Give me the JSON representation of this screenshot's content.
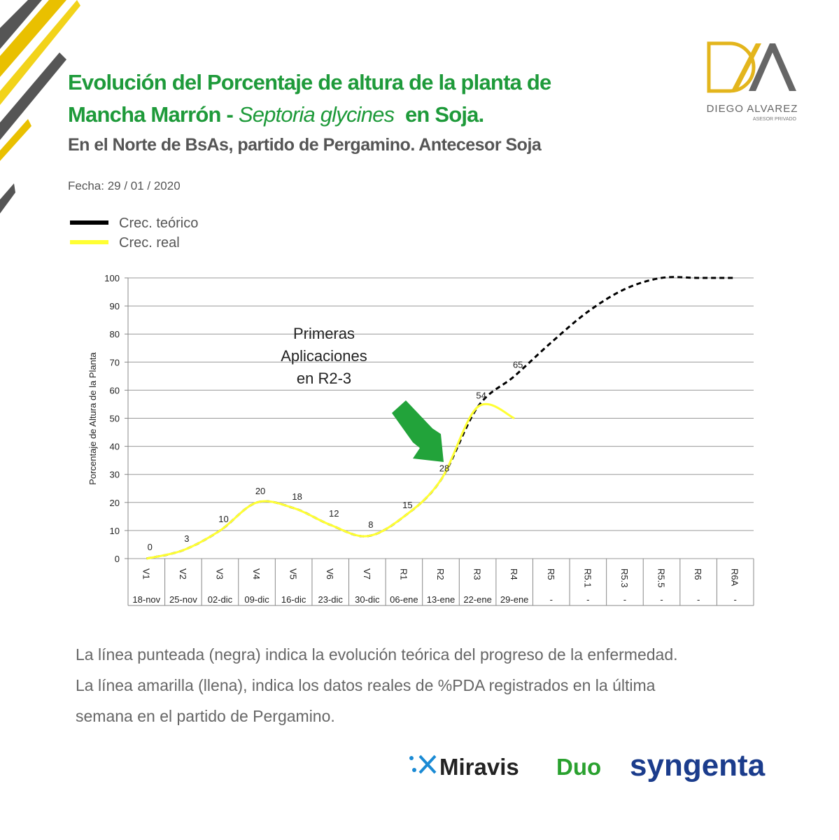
{
  "header": {
    "title": [
      "Evolución del Porcentaje de altura de la planta de",
      "Mancha Marrón - ",
      "Septoria glycines",
      "en Soja."
    ],
    "subtitle": "En el Norte de BsAs, partido de Pergamino. Antecesor Soja",
    "date": "Fecha: 29 / 01 / 2020"
  },
  "brand": {
    "name": "DIEGO ALVAREZ",
    "tagline": "ASESOR PRIVADO"
  },
  "chart_data": {
    "type": "line",
    "y_label": "Porcentaje de Altura de la Planta",
    "annotation": [
      "Primeras",
      "Aplicaciones",
      "en R2-3"
    ],
    "categories": [
      "V1",
      "V2",
      "V3",
      "V4",
      "V5",
      "V6",
      "V7",
      "R1",
      "R2",
      "R3",
      "R4",
      "R5",
      "R5.1",
      "R5.3",
      "R5.5",
      "R6",
      "R6A"
    ],
    "category_dates": [
      "18-nov",
      "25-nov",
      "02-dic",
      "09-dic",
      "16-dic",
      "23-dic",
      "30-dic",
      "06-ene",
      "13-ene",
      "22-ene",
      "29-ene",
      "-",
      "-",
      "-",
      "-",
      "-",
      "-"
    ],
    "series": [
      {
        "name": "Crec. teórico",
        "color": "#000000",
        "dashed": true,
        "values": [
          0,
          3,
          10,
          20,
          18,
          12,
          8,
          15,
          28,
          54,
          65,
          77,
          88,
          96,
          100,
          100,
          100
        ],
        "value_labels": [
          null,
          null,
          null,
          null,
          null,
          null,
          null,
          null,
          null,
          null,
          "65",
          null,
          null,
          null,
          null,
          null,
          null
        ]
      },
      {
        "name": "Crec. real",
        "color": "#ffff33",
        "dashed": false,
        "values": [
          0,
          3,
          10,
          20,
          18,
          12,
          8,
          15,
          28,
          54,
          50,
          null,
          null,
          null,
          null,
          null,
          null
        ],
        "value_labels": [
          "0",
          "3",
          "10",
          "20",
          "18",
          "12",
          "8",
          "15",
          "28",
          "54",
          null,
          null,
          null,
          null,
          null,
          null,
          null
        ]
      }
    ],
    "ylim": [
      0,
      100
    ],
    "yticks": [
      0,
      10,
      20,
      30,
      40,
      50,
      60,
      70,
      80,
      90,
      100
    ],
    "grid": true
  },
  "footer": {
    "note": [
      "La línea punteada (negra) indica la evolución teórica del progreso de la enfermedad.",
      "La línea amarilla (llena), indica los datos reales de %PDA registrados en la última",
      "semana en el partido de Pergamino."
    ],
    "logos": [
      "Miravis",
      "Duo",
      "syngenta"
    ]
  }
}
